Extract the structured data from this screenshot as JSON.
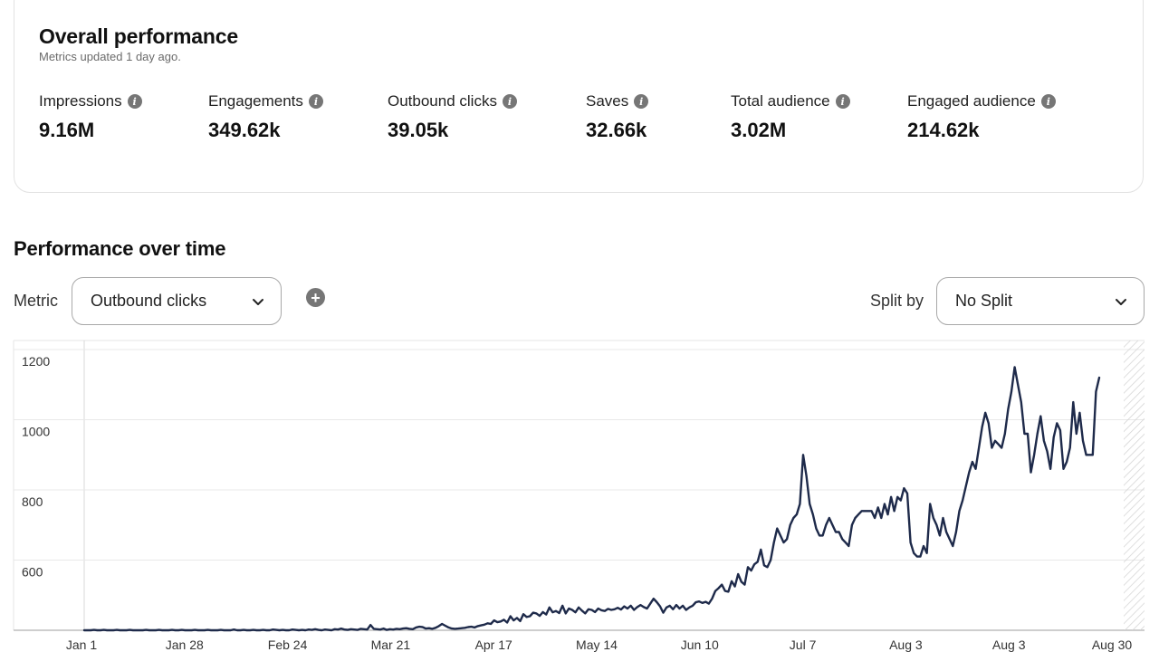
{
  "overview": {
    "title": "Overall performance",
    "subtitle": "Metrics updated 1 day ago.",
    "metrics": [
      {
        "label": "Impressions",
        "value": "9.16M"
      },
      {
        "label": "Engagements",
        "value": "349.62k"
      },
      {
        "label": "Outbound clicks",
        "value": "39.05k"
      },
      {
        "label": "Saves",
        "value": "32.66k"
      },
      {
        "label": "Total audience",
        "value": "3.02M"
      },
      {
        "label": "Engaged audience",
        "value": "214.62k"
      }
    ]
  },
  "performance": {
    "title": "Performance over time",
    "metric_label": "Metric",
    "metric_value": "Outbound clicks",
    "split_label": "Split by",
    "split_value": "No Split"
  },
  "chart_data": {
    "type": "line",
    "ylim": [
      400,
      1200
    ],
    "y_ticks": [
      1200,
      1000,
      800,
      600
    ],
    "x_tick_labels": [
      "Jan 1",
      "Jan 28",
      "Feb 24",
      "Mar 21",
      "Apr 17",
      "May 14",
      "Jun 10",
      "Jul 7",
      "Aug 3",
      "Aug 3",
      "Aug 30"
    ],
    "line_color": "#1e2a4a",
    "series": [
      {
        "values": [
          400,
          400,
          400,
          401,
          400,
          400,
          401,
          400,
          400,
          400,
          401,
          400,
          400,
          400,
          401,
          400,
          400,
          400,
          400,
          401,
          400,
          400,
          400,
          401,
          400,
          400,
          400,
          401,
          400,
          400,
          401,
          400,
          400,
          400,
          401,
          400,
          400,
          400,
          401,
          400,
          400,
          400,
          401,
          400,
          400,
          400,
          402,
          400,
          400,
          401,
          400,
          400,
          401,
          400,
          400,
          401,
          400,
          400,
          402,
          401,
          400,
          401,
          400,
          400,
          402,
          401,
          400,
          401,
          400,
          402,
          401,
          403,
          401,
          400,
          402,
          401,
          400,
          403,
          402,
          405,
          402,
          401,
          403,
          402,
          401,
          404,
          403,
          402,
          415,
          404,
          403,
          402,
          405,
          401,
          403,
          402,
          404,
          403,
          405,
          406,
          404,
          403,
          408,
          410,
          409,
          405,
          406,
          404,
          407,
          412,
          418,
          413,
          408,
          405,
          404,
          405,
          406,
          407,
          409,
          410,
          408,
          412,
          414,
          416,
          420,
          418,
          428,
          423,
          425,
          430,
          422,
          440,
          428,
          435,
          426,
          446,
          438,
          440,
          450,
          448,
          441,
          452,
          445,
          465,
          451,
          455,
          449,
          470,
          448,
          462,
          458,
          451,
          465,
          456,
          448,
          460,
          458,
          452,
          462,
          457,
          455,
          461,
          458,
          460,
          464,
          459,
          468,
          462,
          470,
          458,
          466,
          472,
          466,
          462,
          476,
          490,
          480,
          468,
          450,
          465,
          470,
          460,
          472,
          462,
          470,
          458,
          465,
          470,
          480,
          482,
          478,
          481,
          476,
          490,
          512,
          520,
          530,
          512,
          510,
          540,
          525,
          560,
          538,
          530,
          580,
          570,
          588,
          595,
          630,
          585,
          580,
          600,
          650,
          690,
          670,
          650,
          660,
          700,
          720,
          730,
          760,
          900,
          840,
          760,
          730,
          690,
          670,
          670,
          700,
          720,
          700,
          680,
          680,
          660,
          650,
          640,
          700,
          720,
          730,
          740,
          740,
          740,
          740,
          720,
          750,
          720,
          760,
          730,
          780,
          740,
          780,
          770,
          805,
          790,
          650,
          620,
          610,
          610,
          640,
          620,
          760,
          720,
          700,
          670,
          720,
          680,
          660,
          640,
          680,
          740,
          770,
          810,
          850,
          880,
          860,
          920,
          980,
          1020,
          990,
          920,
          940,
          930,
          920,
          960,
          1030,
          1080,
          1150,
          1100,
          1050,
          960,
          960,
          850,
          900,
          960,
          1010,
          940,
          910,
          860,
          950,
          990,
          970,
          860,
          880,
          920,
          1050,
          960,
          1020,
          940,
          900,
          900,
          900,
          1080,
          1120
        ]
      }
    ]
  }
}
